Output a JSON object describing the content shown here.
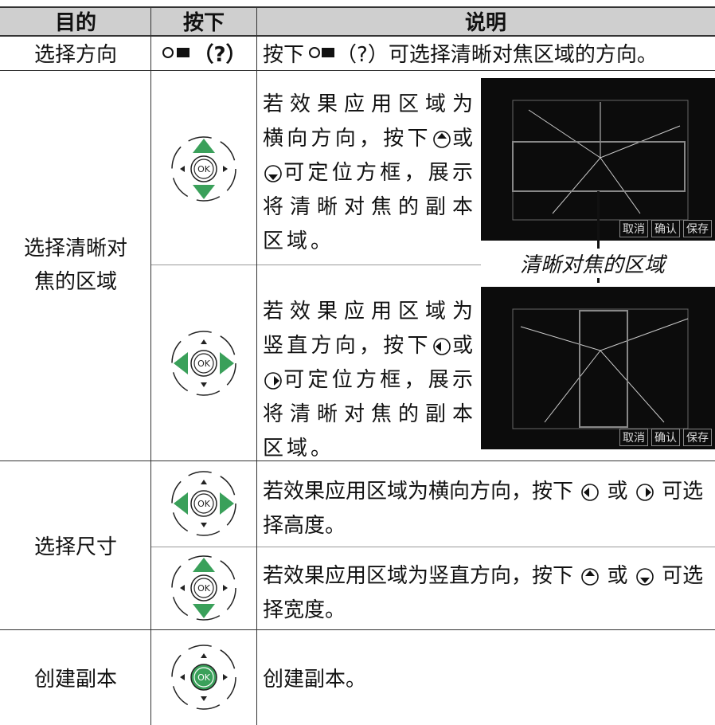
{
  "header": {
    "purpose": "目的",
    "press": "按下",
    "description": "说明"
  },
  "rows": [
    {
      "purpose": "选择方向",
      "press": "（?）",
      "description": [
        "按下",
        "（?）可选择清晰对焦区域的方向。"
      ]
    },
    {
      "purpose": "选择清晰对焦的区域",
      "subrows": [
        {
          "description": [
            "若效果应用区域为横向方向，按下",
            "或",
            "可定位方框，展示将清晰对焦的副本区域。"
          ]
        },
        {
          "description": [
            "若效果应用区域为竖直方向，按下",
            "或",
            "可定位方框，展示将清晰对焦的副本区域。"
          ]
        }
      ],
      "caption": "清晰对焦的区域",
      "screen": {
        "cancel": "取消",
        "confirm": "确认",
        "save": "保存"
      }
    },
    {
      "purpose": "选择尺寸",
      "subrows": [
        {
          "description": [
            "若效果应用区域为横向方向，按下",
            "或",
            "可选择高度。"
          ]
        },
        {
          "description": [
            "若效果应用区域为竖直方向，按下",
            "或",
            "可选择宽度。"
          ]
        }
      ]
    },
    {
      "purpose": "创建副本",
      "description": [
        "创建副本。"
      ]
    }
  ],
  "ok_label": "OK"
}
